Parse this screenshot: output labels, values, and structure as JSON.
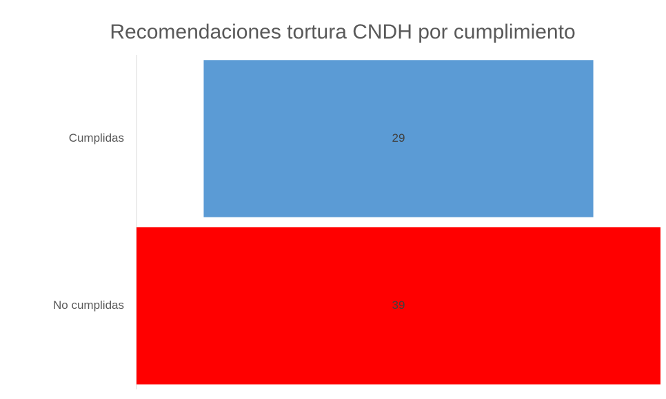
{
  "chart_data": {
    "type": "funnel",
    "title": "Recomendaciones tortura CNDH por cumplimiento",
    "categories": [
      "Cumplidas",
      "No cumplidas"
    ],
    "values": [
      29,
      39
    ],
    "colors": [
      "#5b9bd5",
      "#ff0000"
    ]
  }
}
